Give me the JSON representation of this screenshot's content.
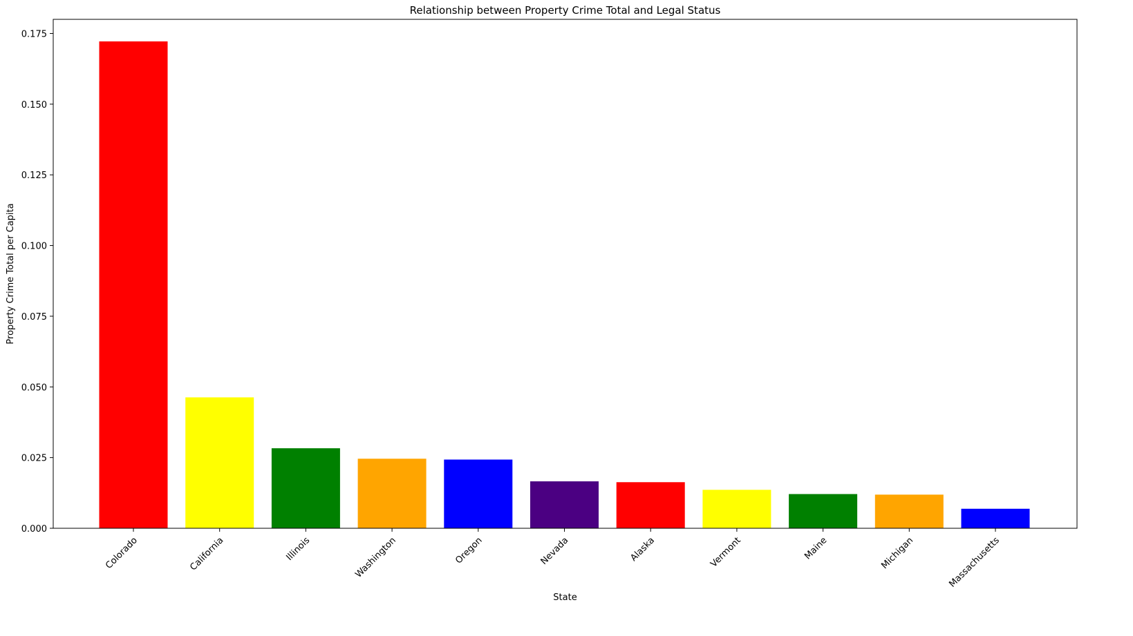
{
  "chart_data": {
    "type": "bar",
    "title": "Relationship between Property Crime Total and Legal Status",
    "xlabel": "State",
    "ylabel": "Property Crime Total per Capita",
    "categories": [
      "Colorado",
      "California",
      "Illinois",
      "Washington",
      "Oregon",
      "Nevada",
      "Alaska",
      "Vermont",
      "Maine",
      "Michigan",
      "Massachusetts"
    ],
    "values": [
      0.1722,
      0.0463,
      0.0283,
      0.0246,
      0.0243,
      0.0166,
      0.0163,
      0.0136,
      0.0121,
      0.0119,
      0.0069
    ],
    "colors": [
      "#ff0000",
      "#ffff00",
      "#008000",
      "#ffa500",
      "#0000ff",
      "#4b0082",
      "#ff0000",
      "#ffff00",
      "#008000",
      "#ffa500",
      "#0000ff"
    ],
    "ylim": [
      0,
      0.18
    ],
    "yticks": [
      0.0,
      0.025,
      0.05,
      0.075,
      0.1,
      0.125,
      0.15,
      0.175
    ],
    "ytick_labels": [
      "0.000",
      "0.025",
      "0.050",
      "0.075",
      "0.100",
      "0.125",
      "0.150",
      "0.175"
    ],
    "grid": false,
    "legend": "none"
  }
}
